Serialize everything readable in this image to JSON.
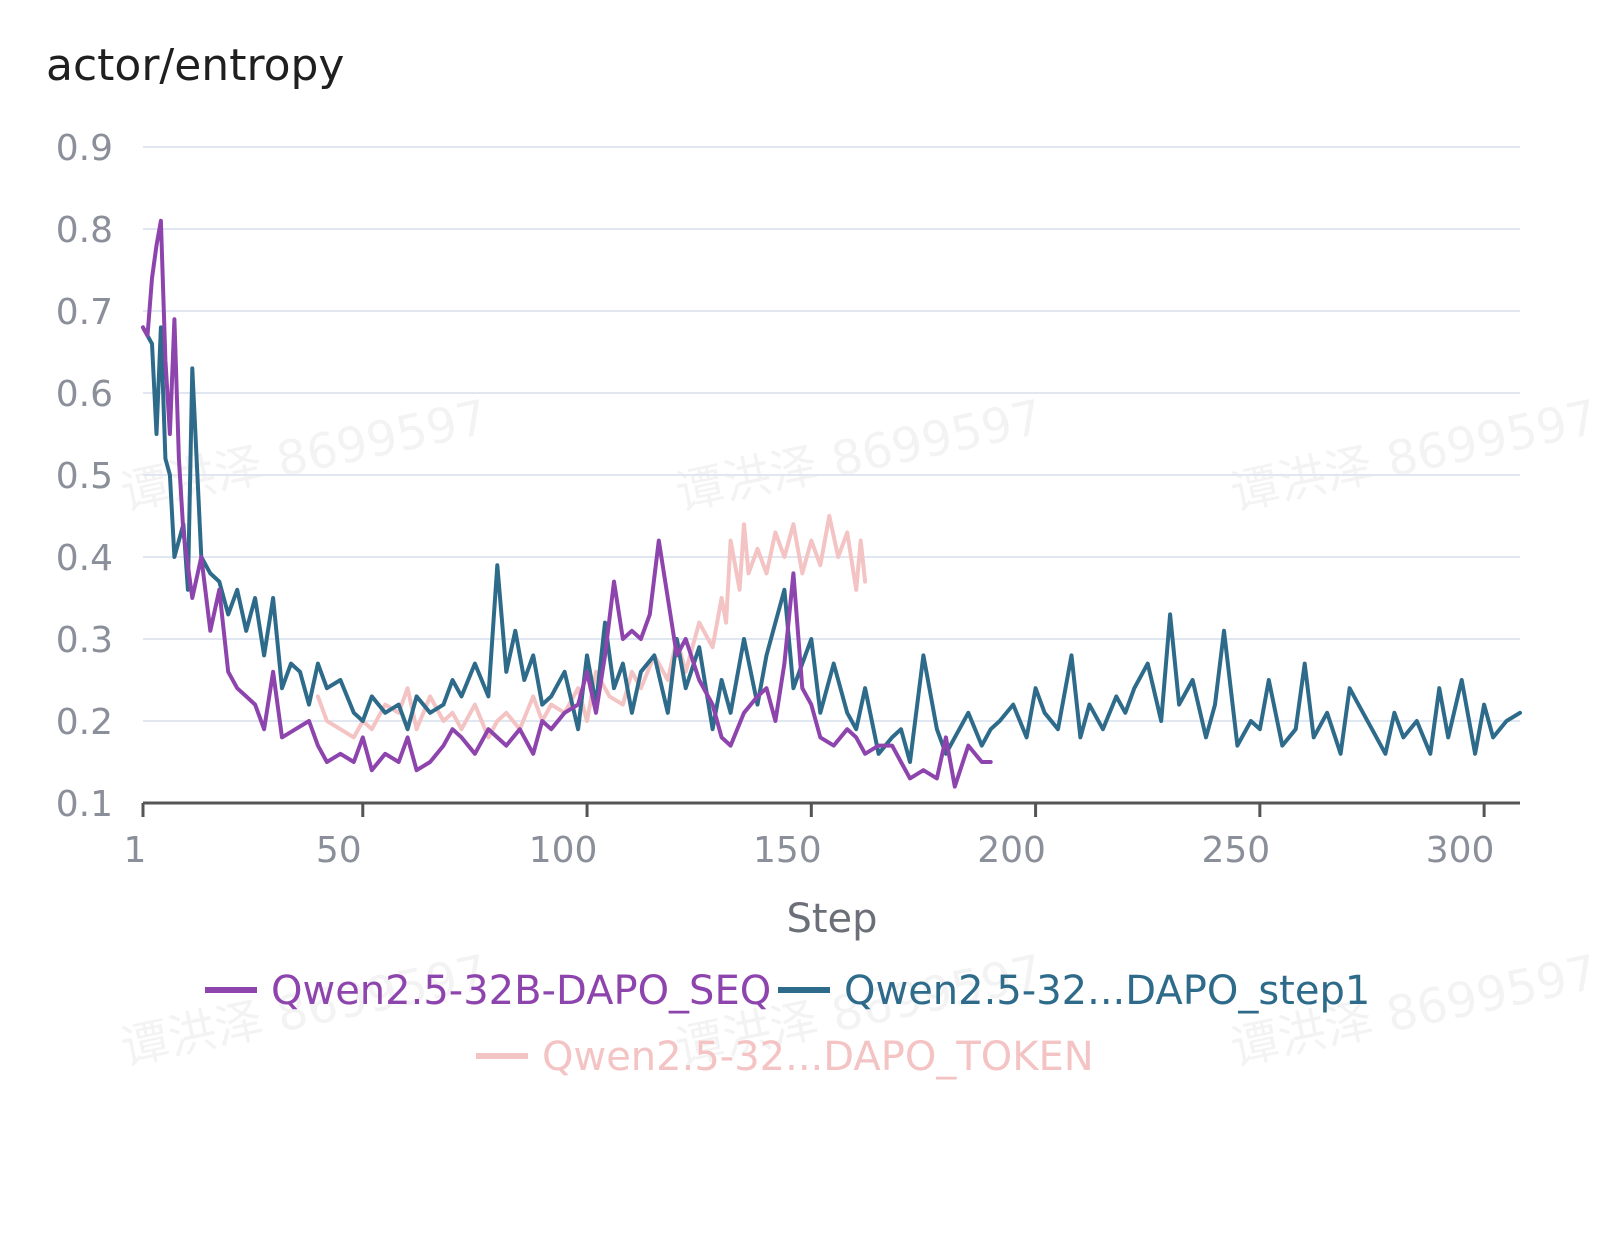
{
  "colors": {
    "seq": "#8e44ad",
    "step1": "#2e6b8a",
    "token": "#f4c3c3",
    "grid": "#e1e7f0",
    "axis": "#555555"
  },
  "watermark_text": "谭洪泽 8699597",
  "chart_data": {
    "type": "line",
    "title": "actor/entropy",
    "xlabel": "Step",
    "ylabel": "",
    "xlim": [
      1,
      308
    ],
    "ylim": [
      0.1,
      0.9
    ],
    "xticks": [
      1,
      50,
      100,
      150,
      200,
      250,
      300
    ],
    "yticks": [
      0.1,
      0.2,
      0.3,
      0.4,
      0.5,
      0.6,
      0.7,
      0.8,
      0.9
    ],
    "xtick_labels": [
      "1",
      "50",
      "100",
      "150",
      "200",
      "250",
      "300"
    ],
    "ytick_labels": [
      "0.1",
      "0.2",
      "0.3",
      "0.4",
      "0.5",
      "0.6",
      "0.7",
      "0.8",
      "0.9"
    ],
    "grid": true,
    "legend_position": "bottom",
    "series": [
      {
        "name": "Qwen2.5-32B-DAPO_SEQ",
        "color_key": "seq",
        "x": [
          1,
          2,
          3,
          4,
          5,
          6,
          7,
          8,
          9,
          10,
          12,
          14,
          16,
          18,
          20,
          22,
          24,
          26,
          28,
          30,
          32,
          35,
          38,
          40,
          42,
          45,
          48,
          50,
          52,
          55,
          58,
          60,
          62,
          65,
          68,
          70,
          72,
          75,
          78,
          80,
          82,
          85,
          88,
          90,
          92,
          95,
          98,
          100,
          102,
          104,
          106,
          108,
          110,
          112,
          114,
          116,
          118,
          120,
          122,
          125,
          128,
          130,
          132,
          135,
          138,
          140,
          142,
          144,
          146,
          148,
          150,
          152,
          155,
          158,
          160,
          162,
          165,
          168,
          170,
          172,
          175,
          178,
          180,
          182,
          185,
          188,
          190
        ],
        "y": [
          0.68,
          0.67,
          0.74,
          0.78,
          0.81,
          0.64,
          0.55,
          0.69,
          0.52,
          0.43,
          0.35,
          0.4,
          0.31,
          0.36,
          0.26,
          0.24,
          0.23,
          0.22,
          0.19,
          0.26,
          0.18,
          0.19,
          0.2,
          0.17,
          0.15,
          0.16,
          0.15,
          0.18,
          0.14,
          0.16,
          0.15,
          0.18,
          0.14,
          0.15,
          0.17,
          0.19,
          0.18,
          0.16,
          0.19,
          0.18,
          0.17,
          0.19,
          0.16,
          0.2,
          0.19,
          0.21,
          0.22,
          0.26,
          0.21,
          0.28,
          0.37,
          0.3,
          0.31,
          0.3,
          0.33,
          0.42,
          0.35,
          0.28,
          0.3,
          0.25,
          0.22,
          0.18,
          0.17,
          0.21,
          0.23,
          0.24,
          0.2,
          0.27,
          0.38,
          0.24,
          0.22,
          0.18,
          0.17,
          0.19,
          0.18,
          0.16,
          0.17,
          0.17,
          0.15,
          0.13,
          0.14,
          0.13,
          0.18,
          0.12,
          0.17,
          0.15,
          0.15
        ]
      },
      {
        "name": "Qwen2.5-32...DAPO_step1",
        "color_key": "step1",
        "x": [
          1,
          3,
          4,
          5,
          6,
          7,
          8,
          10,
          11,
          12,
          14,
          16,
          18,
          20,
          22,
          24,
          26,
          28,
          30,
          32,
          34,
          36,
          38,
          40,
          42,
          45,
          48,
          50,
          52,
          55,
          58,
          60,
          62,
          65,
          68,
          70,
          72,
          75,
          78,
          80,
          82,
          84,
          86,
          88,
          90,
          92,
          95,
          98,
          100,
          102,
          104,
          106,
          108,
          110,
          112,
          115,
          118,
          120,
          122,
          125,
          128,
          130,
          132,
          135,
          138,
          140,
          142,
          144,
          146,
          148,
          150,
          152,
          155,
          158,
          160,
          162,
          165,
          168,
          170,
          172,
          175,
          178,
          180,
          182,
          185,
          188,
          190,
          192,
          195,
          198,
          200,
          202,
          205,
          208,
          210,
          212,
          215,
          218,
          220,
          222,
          225,
          228,
          230,
          232,
          235,
          238,
          240,
          242,
          245,
          248,
          250,
          252,
          255,
          258,
          260,
          262,
          265,
          268,
          270,
          272,
          275,
          278,
          280,
          282,
          285,
          288,
          290,
          292,
          295,
          298,
          300,
          302,
          305,
          308
        ],
        "y": [
          0.68,
          0.66,
          0.55,
          0.68,
          0.52,
          0.5,
          0.4,
          0.44,
          0.36,
          0.63,
          0.4,
          0.38,
          0.37,
          0.33,
          0.36,
          0.31,
          0.35,
          0.28,
          0.35,
          0.24,
          0.27,
          0.26,
          0.22,
          0.27,
          0.24,
          0.25,
          0.21,
          0.2,
          0.23,
          0.21,
          0.22,
          0.19,
          0.23,
          0.21,
          0.22,
          0.25,
          0.23,
          0.27,
          0.23,
          0.39,
          0.26,
          0.31,
          0.25,
          0.28,
          0.22,
          0.23,
          0.26,
          0.19,
          0.28,
          0.22,
          0.32,
          0.24,
          0.27,
          0.21,
          0.26,
          0.28,
          0.21,
          0.3,
          0.24,
          0.29,
          0.19,
          0.25,
          0.21,
          0.3,
          0.22,
          0.28,
          0.32,
          0.36,
          0.24,
          0.27,
          0.3,
          0.21,
          0.27,
          0.21,
          0.19,
          0.24,
          0.16,
          0.18,
          0.19,
          0.15,
          0.28,
          0.19,
          0.16,
          0.18,
          0.21,
          0.17,
          0.19,
          0.2,
          0.22,
          0.18,
          0.24,
          0.21,
          0.19,
          0.28,
          0.18,
          0.22,
          0.19,
          0.23,
          0.21,
          0.24,
          0.27,
          0.2,
          0.33,
          0.22,
          0.25,
          0.18,
          0.22,
          0.31,
          0.17,
          0.2,
          0.19,
          0.25,
          0.17,
          0.19,
          0.27,
          0.18,
          0.21,
          0.16,
          0.24,
          0.22,
          0.19,
          0.16,
          0.21,
          0.18,
          0.2,
          0.16,
          0.24,
          0.18,
          0.25,
          0.16,
          0.22,
          0.18,
          0.2,
          0.21
        ]
      },
      {
        "name": "Qwen2.5-32...DAPO_TOKEN",
        "color_key": "token",
        "x": [
          40,
          42,
          45,
          48,
          50,
          52,
          55,
          58,
          60,
          62,
          65,
          68,
          70,
          72,
          75,
          78,
          80,
          82,
          85,
          88,
          90,
          92,
          95,
          98,
          100,
          102,
          105,
          108,
          110,
          112,
          115,
          118,
          120,
          122,
          125,
          128,
          130,
          131,
          132,
          134,
          135,
          136,
          138,
          140,
          142,
          144,
          146,
          148,
          150,
          152,
          154,
          156,
          158,
          160,
          161,
          162
        ],
        "y": [
          0.23,
          0.2,
          0.19,
          0.18,
          0.2,
          0.19,
          0.22,
          0.21,
          0.24,
          0.19,
          0.23,
          0.2,
          0.21,
          0.19,
          0.22,
          0.18,
          0.2,
          0.21,
          0.19,
          0.23,
          0.2,
          0.22,
          0.21,
          0.24,
          0.2,
          0.26,
          0.23,
          0.22,
          0.26,
          0.24,
          0.28,
          0.25,
          0.3,
          0.26,
          0.32,
          0.29,
          0.35,
          0.32,
          0.42,
          0.36,
          0.44,
          0.38,
          0.41,
          0.38,
          0.43,
          0.4,
          0.44,
          0.38,
          0.42,
          0.39,
          0.45,
          0.4,
          0.43,
          0.36,
          0.42,
          0.37
        ]
      }
    ]
  }
}
